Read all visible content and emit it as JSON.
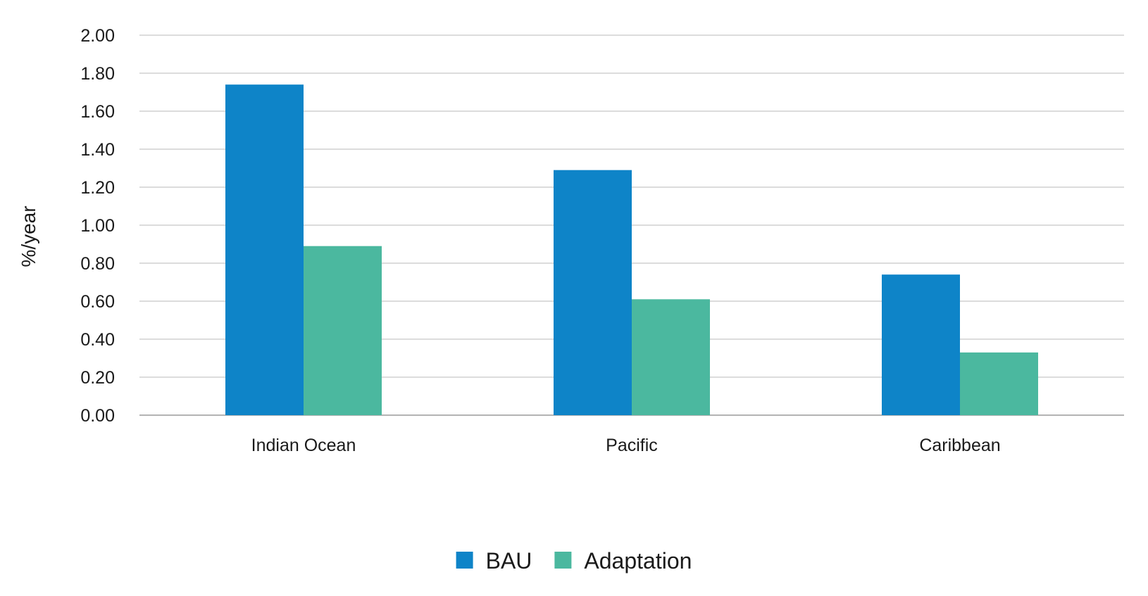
{
  "chart_data": {
    "type": "bar",
    "title": "",
    "xlabel": "",
    "ylabel": "%/year",
    "ylim": [
      0,
      2.0
    ],
    "y_ticks": [
      "0.00",
      "0.20",
      "0.40",
      "0.60",
      "0.80",
      "1.00",
      "1.20",
      "1.40",
      "1.60",
      "1.80",
      "2.00"
    ],
    "y_tick_values": [
      0,
      0.2,
      0.4,
      0.6,
      0.8,
      1.0,
      1.2,
      1.4,
      1.6,
      1.8,
      2.0
    ],
    "grid": true,
    "legend_position": "bottom-center",
    "categories": [
      "Indian Ocean",
      "Pacific",
      "Caribbean"
    ],
    "series": [
      {
        "name": "BAU",
        "color": "#0e84c8",
        "values": [
          1.74,
          1.29,
          0.74
        ]
      },
      {
        "name": "Adaptation",
        "color": "#4bb89f",
        "values": [
          0.89,
          0.61,
          0.33
        ]
      }
    ]
  }
}
